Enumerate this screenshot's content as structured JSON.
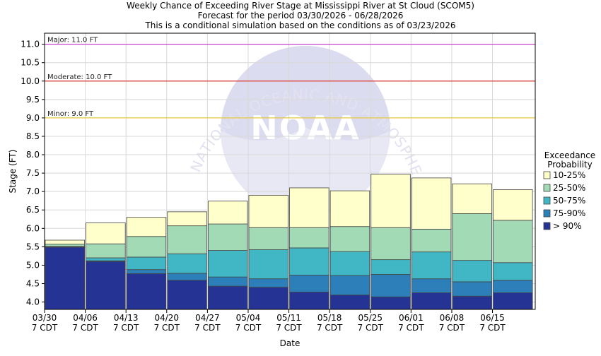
{
  "chart_data": {
    "type": "bar",
    "title_lines": [
      "Weekly Chance of Exceeding River Stage at Mississippi River at St Cloud (SCOM5)",
      "Forecast for the period 03/30/2026 - 06/28/2026",
      "This is a conditional simulation based on the conditions as of 03/23/2026"
    ],
    "xlabel": "Date",
    "ylabel": "Stage (FT)",
    "ylim": [
      3.8,
      11.3
    ],
    "yticks": [
      "4.0",
      "4.5",
      "5.0",
      "5.5",
      "6.0",
      "6.5",
      "7.0",
      "7.5",
      "8.0",
      "8.5",
      "9.0",
      "9.5",
      "10.0",
      "10.5",
      "11.0"
    ],
    "xticks": [
      {
        "date": "03/30",
        "tz": "7 CDT"
      },
      {
        "date": "04/06",
        "tz": "7 CDT"
      },
      {
        "date": "04/13",
        "tz": "7 CDT"
      },
      {
        "date": "04/20",
        "tz": "7 CDT"
      },
      {
        "date": "04/27",
        "tz": "7 CDT"
      },
      {
        "date": "05/04",
        "tz": "7 CDT"
      },
      {
        "date": "05/11",
        "tz": "7 CDT"
      },
      {
        "date": "05/18",
        "tz": "7 CDT"
      },
      {
        "date": "05/25",
        "tz": "7 CDT"
      },
      {
        "date": "06/01",
        "tz": "7 CDT"
      },
      {
        "date": "06/08",
        "tz": "7 CDT"
      },
      {
        "date": "06/15",
        "tz": "7 CDT"
      }
    ],
    "grid": true,
    "thresholds": [
      {
        "label": "Major: 11.0 FT",
        "value": 11.0,
        "color": "#cc44cc"
      },
      {
        "label": "Moderate: 10.0 FT",
        "value": 10.0,
        "color": "#dd3333"
      },
      {
        "label": "Minor: 9.0 FT",
        "value": 9.0,
        "color": "#e8c840"
      }
    ],
    "legend": {
      "title_lines": [
        "Exceedance",
        "Probability"
      ],
      "placement": "right"
    },
    "series": [
      {
        "name": "10-25%",
        "color": "#ffffcc",
        "values": [
          5.68,
          6.15,
          6.3,
          6.45,
          6.74,
          6.9,
          7.1,
          7.02,
          7.47,
          7.37,
          7.21,
          7.05
        ]
      },
      {
        "name": "25-50%",
        "color": "#a1dab4",
        "values": [
          5.57,
          5.58,
          5.78,
          6.07,
          6.12,
          6.02,
          6.02,
          6.05,
          6.02,
          5.98,
          6.4,
          6.22
        ]
      },
      {
        "name": "50-75%",
        "color": "#41b6c4",
        "values": [
          5.51,
          5.2,
          5.22,
          5.31,
          5.4,
          5.42,
          5.47,
          5.37,
          5.15,
          5.36,
          5.13,
          5.07
        ]
      },
      {
        "name": "75-90%",
        "color": "#2c7fb8",
        "values": [
          5.5,
          5.12,
          4.88,
          4.78,
          4.68,
          4.63,
          4.73,
          4.72,
          4.75,
          4.63,
          4.55,
          4.59
        ]
      },
      {
        "name": "> 90%",
        "color": "#253494",
        "values": [
          5.49,
          5.1,
          4.77,
          4.59,
          4.43,
          4.4,
          4.27,
          4.19,
          4.14,
          4.25,
          4.16,
          4.25
        ]
      }
    ],
    "watermark": {
      "logo_text": "NOAA",
      "ring_text": "NATIONAL OCEANIC AND ATMOSPHERIC ADMINISTRATION"
    }
  }
}
